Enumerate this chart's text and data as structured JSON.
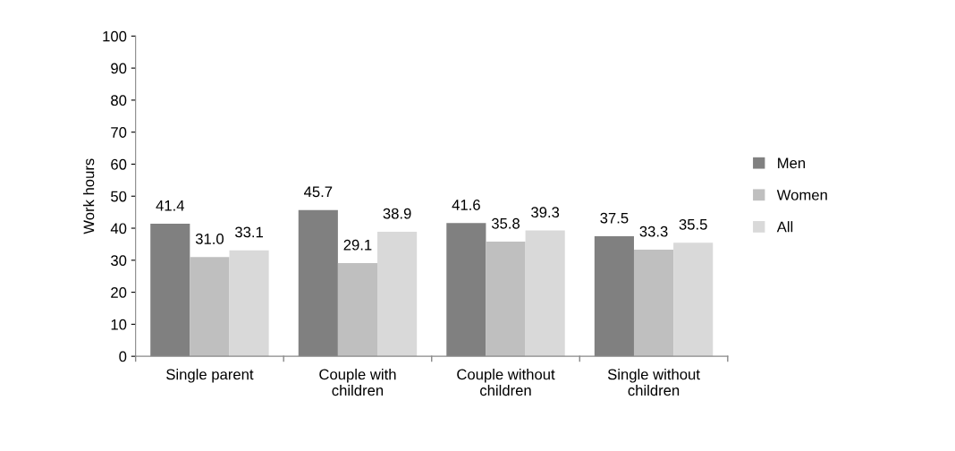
{
  "chart_data": {
    "type": "bar",
    "ylabel": "Work hours",
    "categories": [
      "Single parent",
      "Couple with\nchildren",
      "Couple without\nchildren",
      "Single without\nchildren"
    ],
    "series": [
      {
        "name": "Men",
        "color": "#808080",
        "values": [
          41.4,
          45.7,
          41.6,
          37.5
        ],
        "value_labels": [
          "41.4",
          "45.7",
          "41.6",
          "37.5"
        ]
      },
      {
        "name": "Women",
        "color": "#bfbfbf",
        "values": [
          31.0,
          29.1,
          35.8,
          33.3
        ],
        "value_labels": [
          "31.0",
          "29.1",
          "35.8",
          "33.3"
        ]
      },
      {
        "name": "All",
        "color": "#d9d9d9",
        "values": [
          33.1,
          38.9,
          39.3,
          35.5
        ],
        "value_labels": [
          "33.1",
          "38.9",
          "39.3",
          "35.5"
        ]
      }
    ],
    "ylim": [
      0,
      100
    ],
    "yticks": [
      0,
      10,
      20,
      30,
      40,
      50,
      60,
      70,
      80,
      90,
      100
    ],
    "legend": "right",
    "grid": false
  }
}
